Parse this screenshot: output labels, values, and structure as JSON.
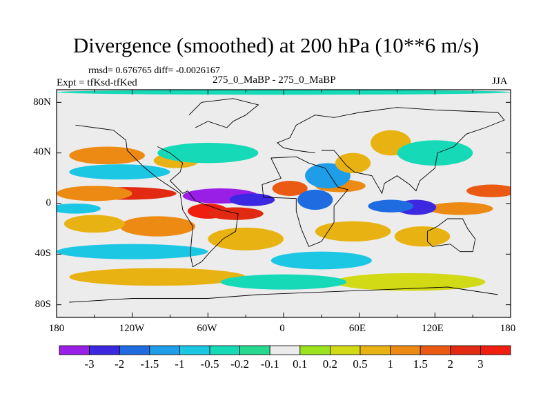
{
  "title": "Divergence (smoothed) at 200 hPa (10**6 m/s)",
  "stats": "rmsd= 0.676765 diff= -0.0026167",
  "experiment": "Expt = tfKsd-tfKed",
  "subtitle": "275_0_MaBP - 275_0_MaBP",
  "season": "JJA",
  "lat_labels": [
    "80N",
    "40N",
    "0",
    "40S",
    "80S"
  ],
  "lon_labels": [
    "180",
    "120W",
    "60W",
    "0",
    "60E",
    "120E",
    "180"
  ],
  "colorbar": {
    "labels": [
      "-3",
      "-2",
      "-1.5",
      "-1",
      "-0.5",
      "-0.2",
      "-0.1",
      "0.1",
      "0.2",
      "0.5",
      "1",
      "1.5",
      "2",
      "3"
    ],
    "colors": [
      "#9a1fe6",
      "#3c28e0",
      "#1f6ce0",
      "#1e9de8",
      "#1cc7e4",
      "#16d9b8",
      "#27d98e",
      "#ececec",
      "#9be31e",
      "#d2d915",
      "#e8b312",
      "#ec8a14",
      "#ea5a12",
      "#e22a12",
      "#f01e0e"
    ]
  },
  "chart_data": {
    "type": "heatmap",
    "title": "Divergence (smoothed) at 200 hPa (10**6 m/s)",
    "x_range": [
      -180,
      180
    ],
    "y_range": [
      -90,
      90
    ],
    "levels": [
      -3,
      -2,
      -1.5,
      -1,
      -0.5,
      -0.2,
      -0.1,
      0.1,
      0.2,
      0.5,
      1,
      1.5,
      2,
      3
    ]
  },
  "map_features": {
    "blobs": [
      {
        "lon": -125,
        "lat": 8,
        "value": 2.3,
        "rlon": 40,
        "rlat": 5
      },
      {
        "lon": -150,
        "lat": 8,
        "value": 1.2,
        "rlon": 30,
        "rlat": 6
      },
      {
        "lon": -60,
        "lat": -6,
        "value": 3.2,
        "rlon": 16,
        "rlat": 6
      },
      {
        "lon": -38,
        "lat": -8,
        "value": 2.4,
        "rlon": 22,
        "rlat": 5
      },
      {
        "lon": 5,
        "lat": 12,
        "value": 1.6,
        "rlon": 14,
        "rlat": 6
      },
      {
        "lon": 45,
        "lat": 14,
        "value": 1.2,
        "rlon": 20,
        "rlat": 5
      },
      {
        "lon": 165,
        "lat": 10,
        "value": 1.8,
        "rlon": 20,
        "rlat": 5
      },
      {
        "lon": 140,
        "lat": -4,
        "value": 1.4,
        "rlon": 26,
        "rlat": 5
      },
      {
        "lon": -50,
        "lat": 6,
        "value": -3.2,
        "rlon": 30,
        "rlat": 6
      },
      {
        "lon": -25,
        "lat": 3,
        "value": -2.4,
        "rlon": 18,
        "rlat": 5
      },
      {
        "lon": 105,
        "lat": -3,
        "value": -2.6,
        "rlon": 16,
        "rlat": 6
      },
      {
        "lon": 85,
        "lat": -2,
        "value": -1.6,
        "rlon": 18,
        "rlat": 5
      },
      {
        "lon": 25,
        "lat": 3,
        "value": -1.8,
        "rlon": 14,
        "rlat": 8
      },
      {
        "lon": 35,
        "lat": 22,
        "value": -1.2,
        "rlon": 18,
        "rlat": 10
      },
      {
        "lon": -165,
        "lat": -4,
        "value": -1.0,
        "rlon": 20,
        "rlat": 4
      },
      {
        "lon": -100,
        "lat": -18,
        "value": 1.0,
        "rlon": 30,
        "rlat": 8
      },
      {
        "lon": -150,
        "lat": -16,
        "value": 0.8,
        "rlon": 24,
        "rlat": 7
      },
      {
        "lon": -30,
        "lat": -28,
        "value": 0.8,
        "rlon": 30,
        "rlat": 9
      },
      {
        "lon": 55,
        "lat": -22,
        "value": 0.8,
        "rlon": 30,
        "rlat": 8
      },
      {
        "lon": 110,
        "lat": -26,
        "value": 0.9,
        "rlon": 22,
        "rlat": 8
      },
      {
        "lon": -140,
        "lat": 38,
        "value": 1.0,
        "rlon": 30,
        "rlat": 7
      },
      {
        "lon": -85,
        "lat": 34,
        "value": 0.8,
        "rlon": 18,
        "rlat": 6
      },
      {
        "lon": 55,
        "lat": 32,
        "value": 0.8,
        "rlon": 14,
        "rlat": 8
      },
      {
        "lon": 85,
        "lat": 48,
        "value": 0.8,
        "rlon": 16,
        "rlat": 10
      },
      {
        "lon": -130,
        "lat": 25,
        "value": -0.6,
        "rlon": 40,
        "rlat": 6
      },
      {
        "lon": -60,
        "lat": 40,
        "value": -0.5,
        "rlon": 40,
        "rlat": 8
      },
      {
        "lon": 120,
        "lat": 40,
        "value": -0.5,
        "rlon": 30,
        "rlat": 10
      },
      {
        "lon": -120,
        "lat": -38,
        "value": -0.6,
        "rlon": 60,
        "rlat": 6
      },
      {
        "lon": 30,
        "lat": -45,
        "value": -0.6,
        "rlon": 40,
        "rlat": 7
      },
      {
        "lon": -100,
        "lat": -58,
        "value": 0.5,
        "rlon": 70,
        "rlat": 7
      },
      {
        "lon": 100,
        "lat": -62,
        "value": 0.4,
        "rlon": 60,
        "rlat": 7
      },
      {
        "lon": 0,
        "lat": -62,
        "value": -0.3,
        "rlon": 50,
        "rlat": 6
      },
      {
        "lon": 0,
        "lat": 88,
        "value": -0.25,
        "rlon": 180,
        "rlat": 2
      }
    ]
  }
}
